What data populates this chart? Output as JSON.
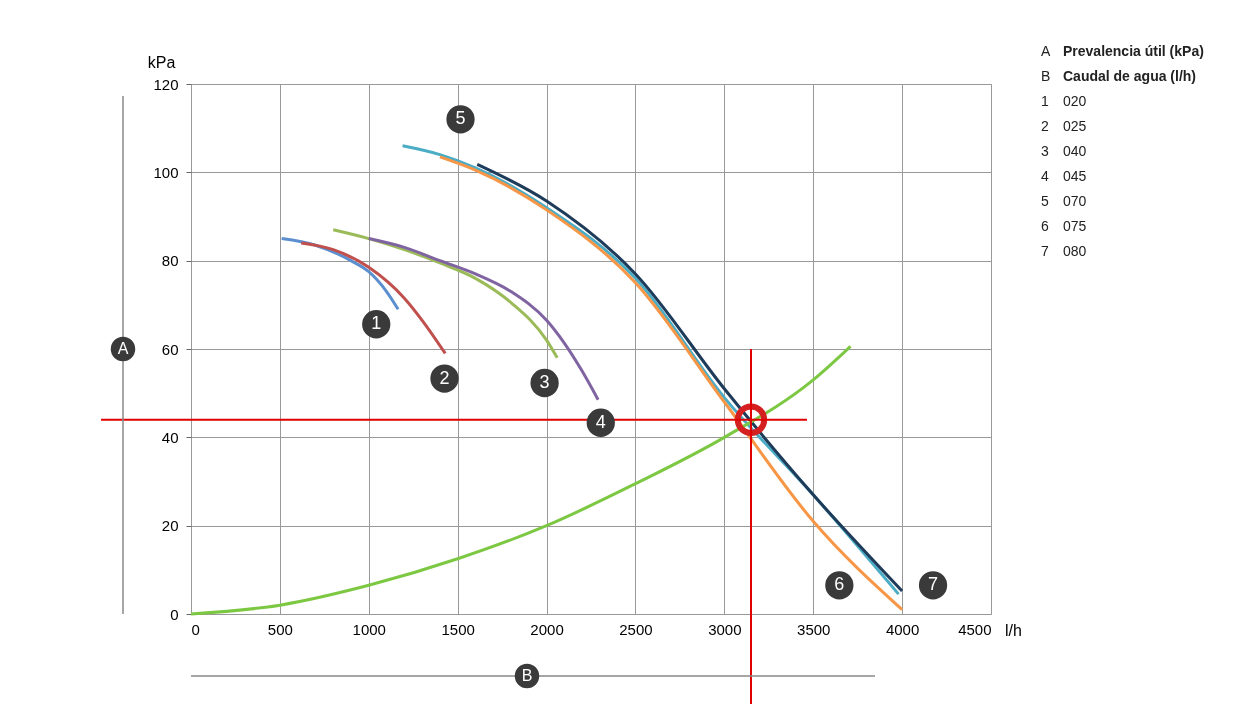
{
  "chart_data": {
    "type": "line",
    "xlabel": "l/h",
    "ylabel": "kPa",
    "xlim": [
      0,
      4500
    ],
    "ylim": [
      0,
      120
    ],
    "xticks": [
      0,
      500,
      1000,
      1500,
      2000,
      2500,
      3000,
      3500,
      4000,
      4500
    ],
    "yticks": [
      0,
      20,
      40,
      60,
      80,
      100,
      120
    ],
    "grid": true,
    "line_style": "solid",
    "series": [
      {
        "color": "#5b8fd0",
        "x": [
          510,
          700,
          900,
          1000,
          1100,
          1165
        ],
        "values": [
          85,
          83.5,
          80,
          77.5,
          73,
          69
        ]
      },
      {
        "color": "#c0504d",
        "x": [
          620,
          800,
          1000,
          1200,
          1300,
          1430
        ],
        "values": [
          84,
          82.5,
          78.5,
          71.5,
          66.5,
          59
        ]
      },
      {
        "color": "#9bbb59",
        "x": [
          800,
          1000,
          1200,
          1400,
          1600,
          1800,
          2000,
          2060
        ],
        "values": [
          87,
          85,
          82.5,
          79.5,
          76,
          70.5,
          62,
          58
        ]
      },
      {
        "color": "#8064a2",
        "x": [
          1000,
          1200,
          1400,
          1600,
          1800,
          2000,
          2200,
          2290
        ],
        "values": [
          85,
          83,
          80,
          77,
          73,
          66.5,
          55,
          48.5
        ]
      },
      {
        "color": "#4bacc6",
        "x": [
          1190,
          1400,
          1600,
          2000,
          2500,
          3000,
          3500,
          3980
        ],
        "values": [
          106,
          104,
          101,
          92,
          76,
          49,
          27,
          4.5
        ]
      },
      {
        "color": "#f79646",
        "x": [
          1400,
          1600,
          2000,
          2500,
          3000,
          3500,
          4000
        ],
        "values": [
          103.5,
          100.5,
          91.5,
          75,
          48,
          21,
          1
        ]
      },
      {
        "color": "#1f3b5a",
        "x": [
          1610,
          2000,
          2500,
          3000,
          3500,
          4000
        ],
        "values": [
          101.8,
          93.5,
          77,
          51,
          27,
          5.2
        ]
      },
      {
        "color": "#7dc843",
        "x": [
          0,
          500,
          1000,
          1500,
          2000,
          2500,
          3000,
          3500,
          3710
        ],
        "values": [
          0,
          2,
          6.5,
          12.5,
          20,
          29.5,
          40,
          53,
          60.6
        ]
      },
      {
        "type": "scatter",
        "marker": "circle",
        "color": "#d42020",
        "x": [
          3150
        ],
        "values": [
          44
        ]
      }
    ],
    "ref_lines": [
      {
        "axis": "x",
        "value": 3150,
        "color": "#e00000"
      },
      {
        "axis": "y",
        "value": 44,
        "color": "#e00000"
      }
    ],
    "annotations": [
      {
        "text": "1",
        "x": 1042,
        "y": 65.6
      },
      {
        "text": "2",
        "x": 1426,
        "y": 53.3
      },
      {
        "text": "3",
        "x": 1989,
        "y": 52.3
      },
      {
        "text": "4",
        "x": 2305,
        "y": 43.3
      },
      {
        "text": "5",
        "x": 1516,
        "y": 112
      },
      {
        "text": "6",
        "x": 3647,
        "y": 6.5
      },
      {
        "text": "7",
        "x": 4174,
        "y": 6.5
      },
      "A",
      "B",
      "A Prevalencia útil (kPa)",
      "B Caudal de agua (l/h)",
      "1 020",
      "2 025",
      "3 040",
      "4 045",
      "5 070",
      "6 075",
      "7 080"
    ]
  }
}
